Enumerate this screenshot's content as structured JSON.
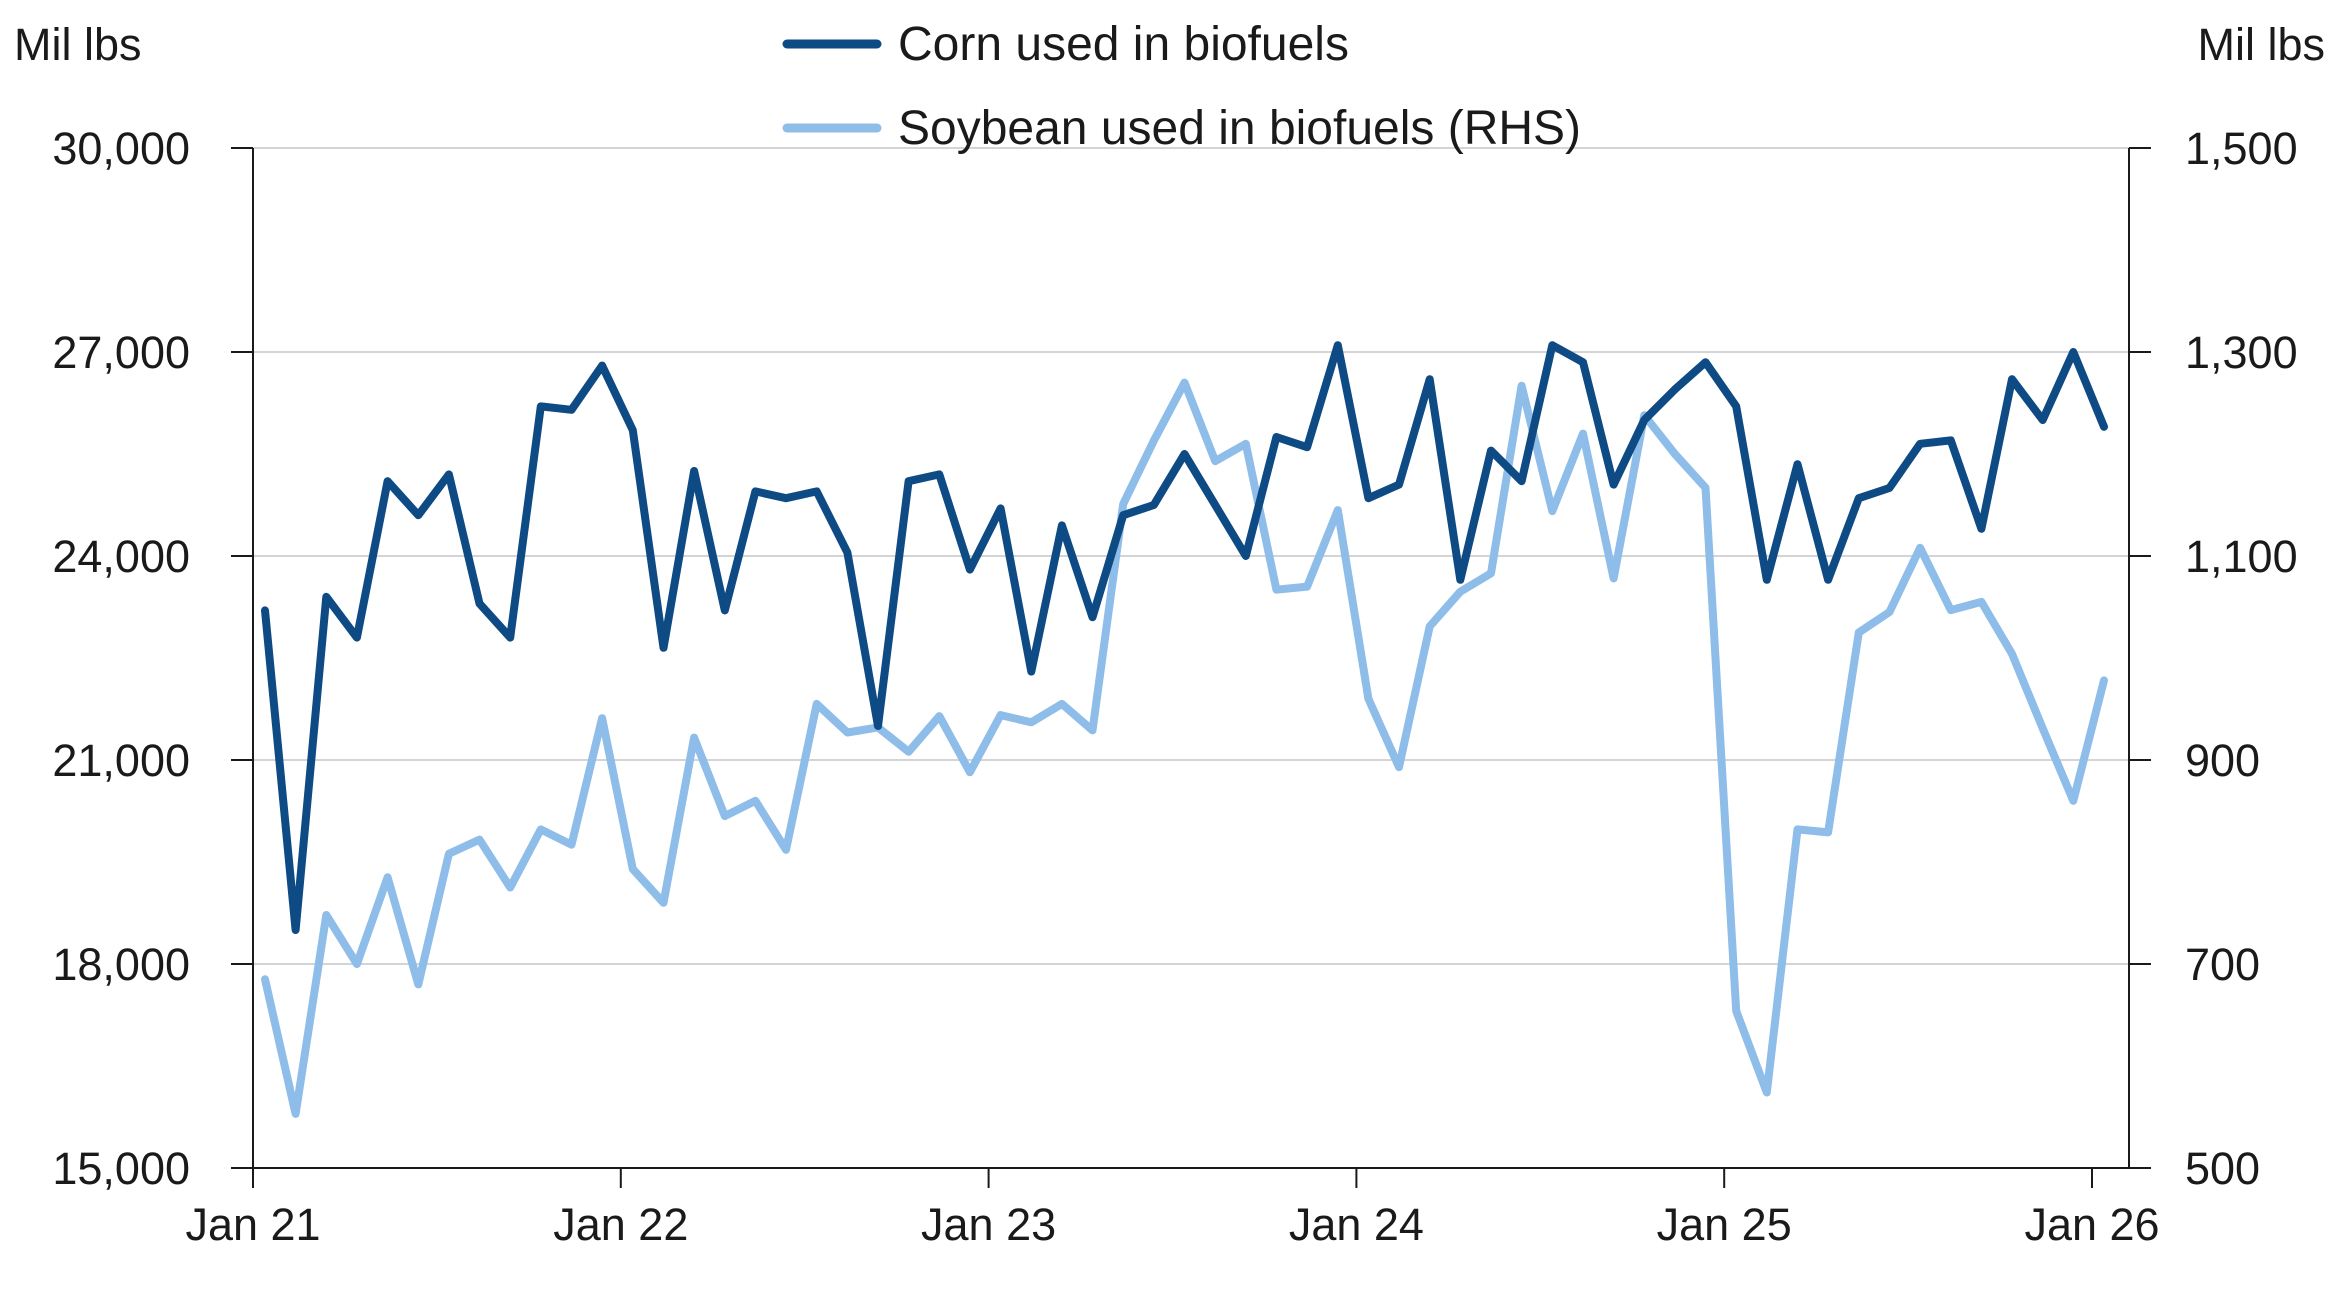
{
  "chart_data": {
    "type": "line",
    "left_unit": "Mil lbs",
    "right_unit": "Mil lbs",
    "x_tick_labels": [
      "Jan 21",
      "Jan 22",
      "Jan 23",
      "Jan 24",
      "Jan 25",
      "Jan 26"
    ],
    "y_left_ticks": [
      "15,000",
      "18,000",
      "21,000",
      "24,000",
      "27,000",
      "30,000"
    ],
    "y_right_ticks": [
      "500",
      "700",
      "900",
      "1,100",
      "1,300",
      "1,500"
    ],
    "y_left_range": [
      15000,
      30000
    ],
    "y_right_range": [
      500,
      1500
    ],
    "grid": true,
    "legend_position": "top-center",
    "months": [
      "2021-01",
      "2021-02",
      "2021-03",
      "2021-04",
      "2021-05",
      "2021-06",
      "2021-07",
      "2021-08",
      "2021-09",
      "2021-10",
      "2021-11",
      "2021-12",
      "2022-01",
      "2022-02",
      "2022-03",
      "2022-04",
      "2022-05",
      "2022-06",
      "2022-07",
      "2022-08",
      "2022-09",
      "2022-10",
      "2022-11",
      "2022-12",
      "2023-01",
      "2023-02",
      "2023-03",
      "2023-04",
      "2023-05",
      "2023-06",
      "2023-07",
      "2023-08",
      "2023-09",
      "2023-10",
      "2023-11",
      "2023-12",
      "2024-01",
      "2024-02",
      "2024-03",
      "2024-04",
      "2024-05",
      "2024-06",
      "2024-07",
      "2024-08",
      "2024-09",
      "2024-10",
      "2024-11",
      "2024-12",
      "2025-01",
      "2025-02",
      "2025-03",
      "2025-04",
      "2025-05",
      "2025-06",
      "2025-07",
      "2025-08",
      "2025-09",
      "2025-10",
      "2025-11",
      "2025-12",
      "2026-01"
    ],
    "series": [
      {
        "name": "Corn used in biofuels",
        "axis": "left",
        "color": "#0e4a84",
        "values": [
          23200,
          18500,
          23400,
          22800,
          25100,
          24600,
          25200,
          23300,
          22800,
          26200,
          26150,
          26800,
          25850,
          22650,
          25250,
          23200,
          24950,
          24850,
          24950,
          24050,
          21500,
          25100,
          25200,
          23800,
          24700,
          22300,
          24450,
          23100,
          24600,
          24750,
          25500,
          24750,
          24000,
          25750,
          25600,
          27100,
          24850,
          25050,
          26600,
          23650,
          25550,
          25100,
          27100,
          26850,
          25050,
          26000,
          26450,
          26850,
          26200,
          23650,
          25350,
          23650,
          24850,
          25000,
          25650,
          25700,
          24400,
          26600,
          26000,
          27000,
          25900
        ]
      },
      {
        "name": "Soybean used in biofuels (RHS)",
        "axis": "right",
        "color": "#8dbde8",
        "values": [
          685,
          553,
          748,
          700,
          785,
          680,
          808,
          822,
          775,
          832,
          817,
          941,
          793,
          760,
          922,
          845,
          860,
          812,
          955,
          927,
          932,
          908,
          943,
          888,
          944,
          937,
          955,
          929,
          1151,
          1213,
          1270,
          1193,
          1210,
          1067,
          1070,
          1145,
          960,
          893,
          1031,
          1065,
          1083,
          1267,
          1144,
          1220,
          1078,
          1238,
          1200,
          1167,
          654,
          574,
          832,
          829,
          1025,
          1045,
          1108,
          1047,
          1055,
          1004,
          931,
          860,
          978
        ]
      }
    ]
  }
}
